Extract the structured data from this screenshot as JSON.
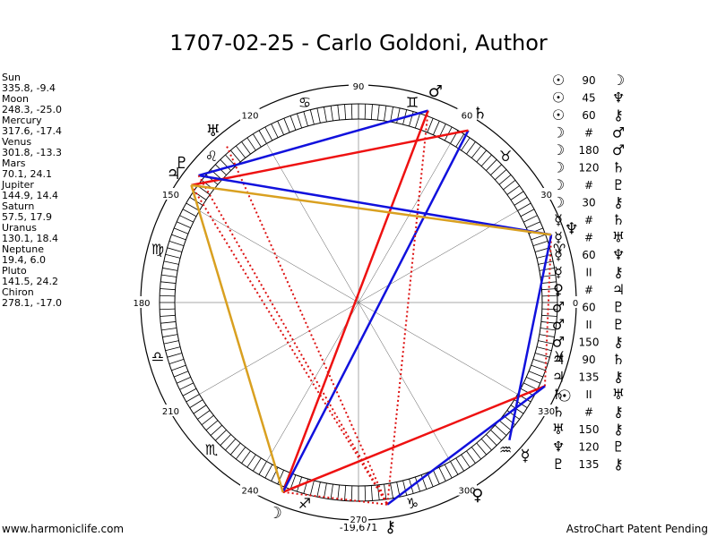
{
  "title": "1707-02-25 - Carlo Goldoni, Author",
  "planets": [
    {
      "name": "Sun",
      "position": "335.8, -9.4",
      "glyph": "☉"
    },
    {
      "name": "Moon",
      "position": "248.3, -25.0",
      "glyph": "☽"
    },
    {
      "name": "Mercury",
      "position": "317.6, -17.4",
      "glyph": "☿"
    },
    {
      "name": "Venus",
      "position": "301.8, -13.3",
      "glyph": "♀"
    },
    {
      "name": "Mars",
      "position": "70.1, 24.1",
      "glyph": "♂"
    },
    {
      "name": "Jupiter",
      "position": "144.9, 14.4",
      "glyph": "♃"
    },
    {
      "name": "Saturn",
      "position": "57.5, 17.9",
      "glyph": "♄"
    },
    {
      "name": "Uranus",
      "position": "130.1, 18.4",
      "glyph": "♅"
    },
    {
      "name": "Neptune",
      "position": "19.4, 6.0",
      "glyph": "♆"
    },
    {
      "name": "Pluto",
      "position": "141.5, 24.2",
      "glyph": "♇"
    },
    {
      "name": "Chiron",
      "position": "278.1, -17.0",
      "glyph": "⚷"
    }
  ],
  "aspects": [
    [
      "☉",
      "90",
      "☽"
    ],
    [
      "☉",
      "45",
      "♆"
    ],
    [
      "☉",
      "60",
      "⚷"
    ],
    [
      "☽",
      "#",
      "♂"
    ],
    [
      "☽",
      "180",
      "♂"
    ],
    [
      "☽",
      "120",
      "♄"
    ],
    [
      "☽",
      "#",
      "♇"
    ],
    [
      "☽",
      "30",
      "⚷"
    ],
    [
      "☿",
      "#",
      "♄"
    ],
    [
      "☿",
      "#",
      "♅"
    ],
    [
      "☿",
      "60",
      "♆"
    ],
    [
      "☿",
      "II",
      "⚷"
    ],
    [
      "♀",
      "#",
      "♃"
    ],
    [
      "♂",
      "60",
      "♇"
    ],
    [
      "♂",
      "II",
      "♇"
    ],
    [
      "♂",
      "150",
      "⚷"
    ],
    [
      "♃",
      "90",
      "♄"
    ],
    [
      "♃",
      "135",
      "⚷"
    ],
    [
      "♄",
      "II",
      "♅"
    ],
    [
      "♄",
      "#",
      "⚷"
    ],
    [
      "♅",
      "150",
      "⚷"
    ],
    [
      "♆",
      "120",
      "♇"
    ],
    [
      "♇",
      "135",
      "⚷"
    ]
  ],
  "signs": [
    "♈",
    "♉",
    "♊",
    "♋",
    "♌",
    "♍",
    "♎",
    "♏",
    "♐",
    "♑",
    "♒",
    "♓"
  ],
  "wheel": {
    "degree_labels": [
      0,
      30,
      60,
      90,
      120,
      150,
      180,
      210,
      240,
      270,
      300,
      330
    ],
    "bottom_label": "-19,671"
  },
  "footer": {
    "left": "www.harmoniclife.com",
    "right": "AstroChart Patent Pending"
  }
}
